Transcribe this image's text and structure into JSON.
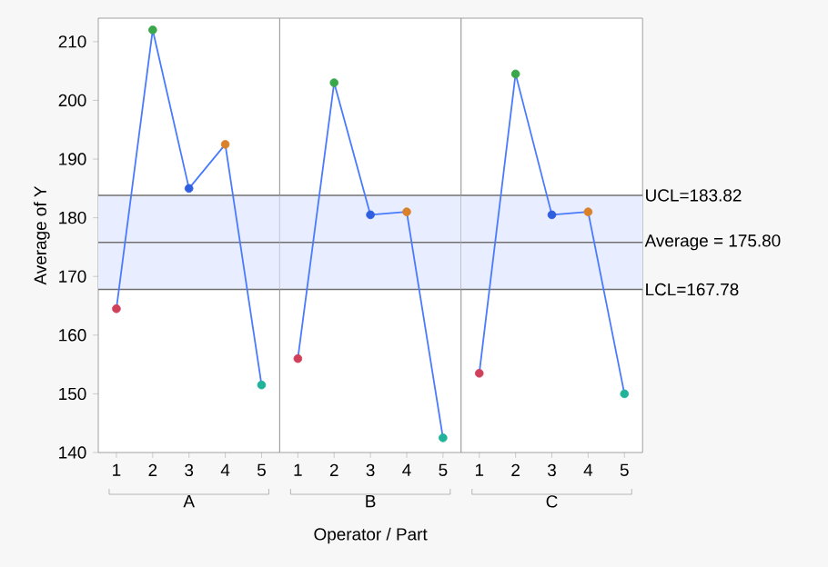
{
  "chart_data": [
    {
      "type": "line",
      "xlabel": "A",
      "ylabel": "Average of Y",
      "categories": [
        "1",
        "2",
        "3",
        "4",
        "5"
      ],
      "series": [
        {
          "color": "#4a7bff",
          "values": [
            164.5,
            212,
            185,
            192.5,
            151.5
          ],
          "colors": [
            "#d0405a",
            "#3aa84a",
            "#2f5fe0",
            "#d9822b",
            "#20b39a"
          ]
        }
      ],
      "ylim": [
        140,
        214
      ],
      "yticks": [
        140,
        150,
        160,
        170,
        180,
        190,
        200,
        210
      ],
      "marker": "circle",
      "grid": false,
      "ref_lines": [
        {
          "axis": "y",
          "value": 183.82
        },
        {
          "axis": "y",
          "value": 175.8
        },
        {
          "axis": "y",
          "value": 167.78
        }
      ],
      "bands": [
        {
          "axis": "y",
          "from": 167.78,
          "to": 183.82,
          "color": "#e8eeff"
        }
      ]
    },
    {
      "type": "line",
      "xlabel": "B",
      "categories": [
        "1",
        "2",
        "3",
        "4",
        "5"
      ],
      "series": [
        {
          "color": "#4a7bff",
          "values": [
            156,
            203,
            180.5,
            181,
            142.5
          ],
          "colors": [
            "#d0405a",
            "#3aa84a",
            "#2f5fe0",
            "#d9822b",
            "#20b39a"
          ]
        }
      ],
      "ylim": [
        140,
        214
      ],
      "tick_labels": "x",
      "marker": "circle",
      "grid": false,
      "annotations": [
        "Operator / Part"
      ],
      "ref_lines": [
        {
          "axis": "y",
          "value": 183.82
        },
        {
          "axis": "y",
          "value": 175.8
        },
        {
          "axis": "y",
          "value": 167.78
        }
      ],
      "bands": [
        {
          "axis": "y",
          "from": 167.78,
          "to": 183.82,
          "color": "#e8eeff"
        }
      ]
    },
    {
      "type": "line",
      "xlabel": "C",
      "categories": [
        "1",
        "2",
        "3",
        "4",
        "5"
      ],
      "series": [
        {
          "color": "#4a7bff",
          "values": [
            153.5,
            204.5,
            180.5,
            181,
            150
          ],
          "colors": [
            "#d0405a",
            "#3aa84a",
            "#2f5fe0",
            "#d9822b",
            "#20b39a"
          ]
        }
      ],
      "ylim": [
        140,
        214
      ],
      "tick_labels": "x",
      "marker": "circle",
      "grid": false,
      "ref_lines": [
        {
          "axis": "y",
          "value": 183.82,
          "label": "UCL=183.82"
        },
        {
          "axis": "y",
          "value": 175.8,
          "label": "Average = 175.80"
        },
        {
          "axis": "y",
          "value": 167.78,
          "label": "LCL=167.78"
        }
      ],
      "bands": [
        {
          "axis": "y",
          "from": 167.78,
          "to": 183.82,
          "color": "#e8eeff"
        }
      ]
    }
  ]
}
